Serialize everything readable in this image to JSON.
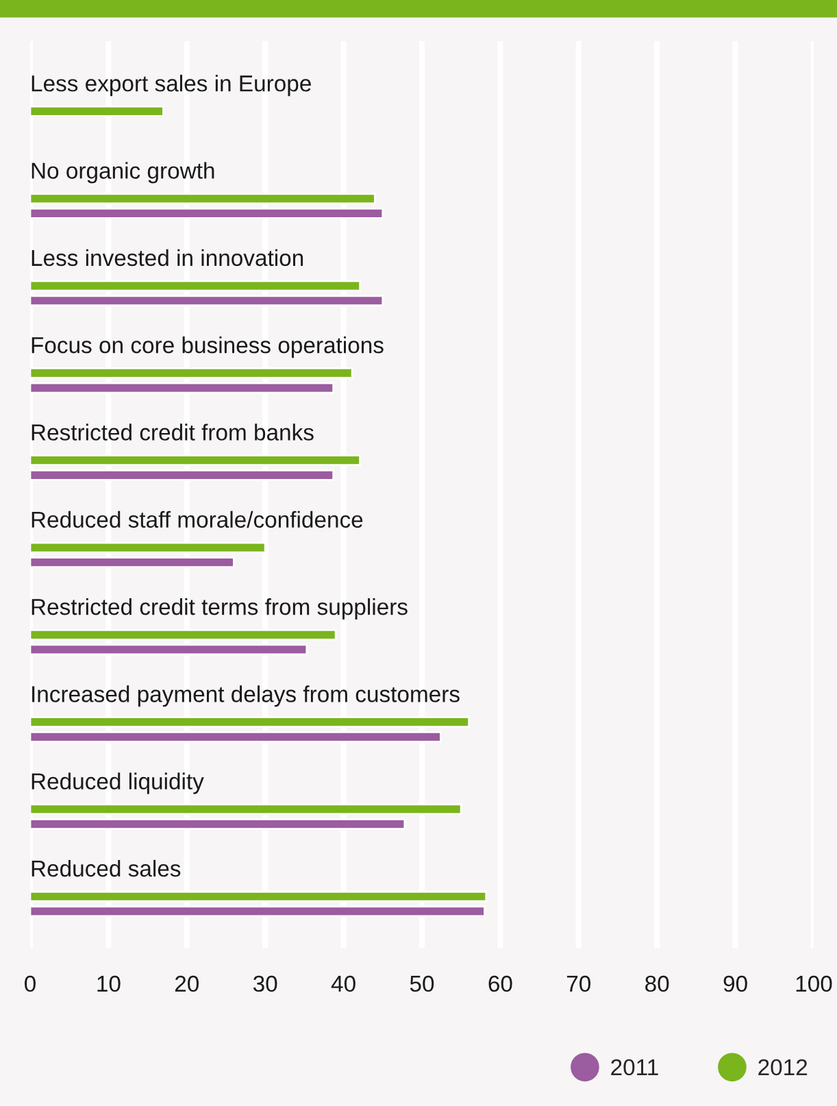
{
  "chart_data": {
    "type": "bar",
    "orientation": "horizontal",
    "categories": [
      "Less export sales in Europe",
      "No organic growth",
      "Less invested in innovation",
      "Focus on core business operations",
      "Restricted credit from banks",
      "Reduced staff morale/confidence",
      "Restricted credit terms from suppliers",
      "Increased payment delays from customers",
      "Reduced liquidity",
      "Reduced sales"
    ],
    "series": [
      {
        "name": "2011",
        "color": "#9b5ca0",
        "values": [
          null,
          45,
          45,
          38.7,
          38.7,
          26,
          35.3,
          52.4,
          47.8,
          58
        ]
      },
      {
        "name": "2012",
        "color": "#7ab51d",
        "values": [
          17,
          44,
          42.1,
          41.1,
          42.1,
          30,
          39,
          56,
          55,
          58.2
        ]
      }
    ],
    "xlim": [
      0,
      100
    ],
    "xticks": [
      0,
      10,
      20,
      30,
      40,
      50,
      60,
      70,
      80,
      90,
      100
    ],
    "grid": "x",
    "legend": "bottom right"
  }
}
